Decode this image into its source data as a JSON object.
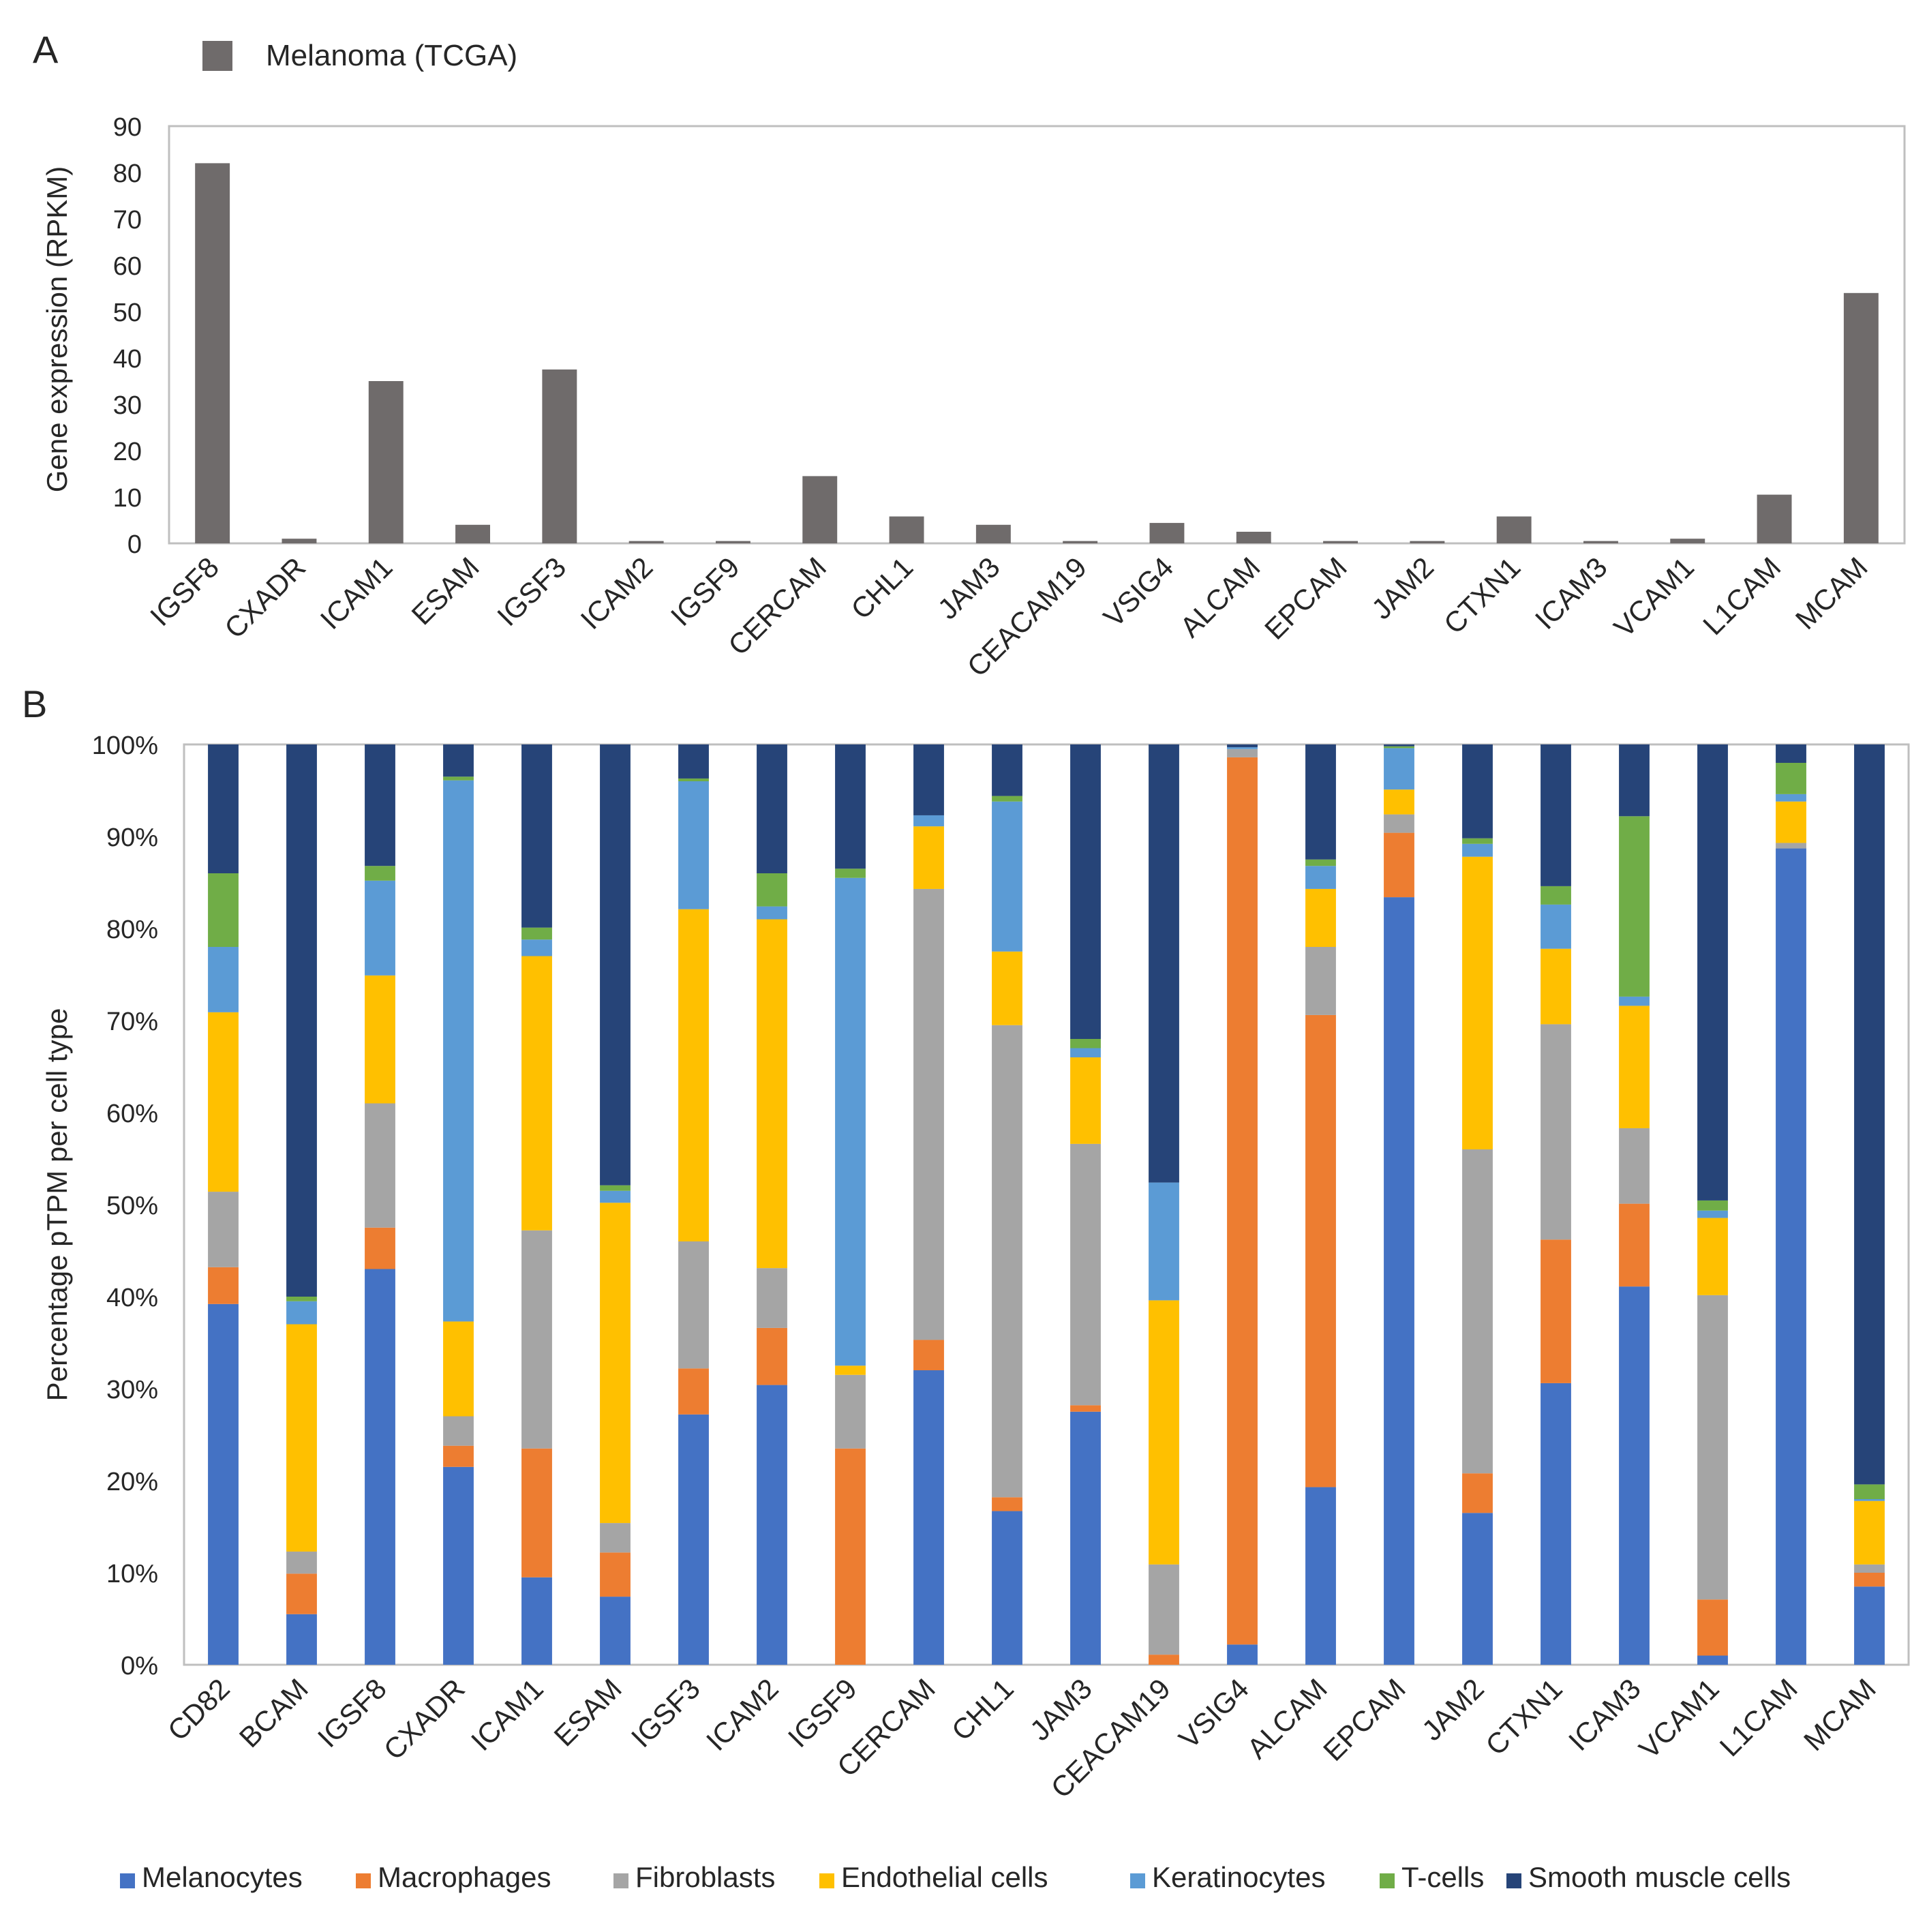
{
  "panel_labels": {
    "a": "A",
    "b": "B"
  },
  "colors": {
    "bar_a": "#6f6b6b",
    "Melanocytes": "#4472c4",
    "Macrophages": "#ed7d31",
    "Fibroblasts": "#a5a5a5",
    "Endothelial cells": "#ffc000",
    "Keratinocytes": "#5b9bd5",
    "T-cells": "#70ad47",
    "Smooth muscle cells": "#264478"
  },
  "chart_data": [
    {
      "type": "bar",
      "panel": "A",
      "legend": [
        "Melanoma (TCGA)"
      ],
      "title": "",
      "xlabel": "",
      "ylabel": "Gene expression (RPKM)",
      "ylim": [
        0,
        90
      ],
      "yticks": [
        "0",
        "10",
        "20",
        "30",
        "40",
        "50",
        "60",
        "70",
        "80",
        "90"
      ],
      "categories": [
        "IGSF8",
        "CXADR",
        "ICAM1",
        "ESAM",
        "IGSF3",
        "ICAM2",
        "IGSF9",
        "CERCAM",
        "CHL1",
        "JAM3",
        "CEACAM19",
        "VSIG4",
        "ALCAM",
        "EPCAM",
        "JAM2",
        "CTXN1",
        "ICAM3",
        "VCAM1",
        "L1CAM",
        "MCAM"
      ],
      "values": [
        82,
        1,
        35,
        4,
        37.5,
        0.5,
        0.5,
        14.5,
        5.8,
        4,
        0.5,
        4.4,
        2.5,
        0.5,
        0.5,
        5.8,
        0.5,
        1,
        10.5,
        54
      ]
    },
    {
      "type": "bar",
      "stacked": true,
      "panel": "B",
      "title": "",
      "xlabel": "",
      "ylabel": "Percentage pTPM per cell type",
      "ylim": [
        0,
        100
      ],
      "yticks": [
        "0%",
        "10%",
        "20%",
        "30%",
        "40%",
        "50%",
        "60%",
        "70%",
        "80%",
        "90%",
        "100%"
      ],
      "categories": [
        "CD82",
        "BCAM",
        "IGSF8",
        "CXADR",
        "ICAM1",
        "ESAM",
        "IGSF3",
        "ICAM2",
        "IGSF9",
        "CERCAM",
        "CHL1",
        "JAM3",
        "CEACAM19",
        "VSIG4",
        "ALCAM",
        "EPCAM",
        "JAM2",
        "CTXN1",
        "ICAM3",
        "VCAM1",
        "L1CAM",
        "MCAM"
      ],
      "legend_position": "bottom",
      "series": [
        {
          "name": "Melanocytes",
          "values": [
            39.2,
            5.5,
            43,
            21.5,
            9.5,
            7.4,
            27.2,
            30.4,
            0,
            32,
            16.7,
            27.5,
            0,
            2.2,
            19.3,
            83.4,
            16.5,
            30.6,
            41.1,
            1,
            88.7,
            8.5
          ]
        },
        {
          "name": "Macrophages",
          "values": [
            4,
            4.4,
            4.5,
            2.3,
            14,
            4.8,
            5,
            6.2,
            23.5,
            3.3,
            1.5,
            0.7,
            1.1,
            96.4,
            51.3,
            7,
            4.3,
            15.6,
            9,
            6.1,
            0,
            1.5
          ]
        },
        {
          "name": "Fibroblasts",
          "values": [
            8.2,
            2.4,
            13.5,
            3.2,
            23.7,
            3.2,
            13.8,
            6.5,
            8,
            49,
            51.3,
            28.4,
            9.8,
            0.9,
            7.4,
            2,
            35.2,
            23.4,
            8.2,
            33.1,
            0.6,
            0.9
          ]
        },
        {
          "name": "Endothelial cells",
          "values": [
            19.5,
            24.7,
            13.9,
            10.3,
            29.8,
            34.8,
            36.1,
            37.9,
            1,
            6.8,
            8,
            9.4,
            28.7,
            0,
            6.3,
            2.7,
            31.8,
            8.2,
            13.3,
            8.4,
            4.5,
            6.9
          ]
        },
        {
          "name": "Keratinocytes",
          "values": [
            7.1,
            2.5,
            10.3,
            58.8,
            1.8,
            1.3,
            13.9,
            1.4,
            53,
            1.2,
            16.3,
            1,
            12.8,
            0.2,
            2.5,
            4.5,
            1.4,
            4.8,
            1,
            0.8,
            0.8,
            0.2
          ]
        },
        {
          "name": "T-cells",
          "values": [
            8,
            0.5,
            1.6,
            0.4,
            1.3,
            0.6,
            0.3,
            3.6,
            1,
            0,
            0.6,
            1,
            0,
            0,
            0.7,
            0.2,
            0.6,
            2,
            19.6,
            1.1,
            3.4,
            1.6
          ]
        },
        {
          "name": "Smooth muscle cells",
          "values": [
            14,
            60,
            13.2,
            3.5,
            19.9,
            47.9,
            3.7,
            14,
            13.5,
            7.7,
            5.6,
            32,
            47.6,
            0.3,
            12.5,
            0.2,
            10.2,
            15.4,
            7.8,
            49.6,
            2,
            80.4
          ]
        }
      ]
    }
  ]
}
